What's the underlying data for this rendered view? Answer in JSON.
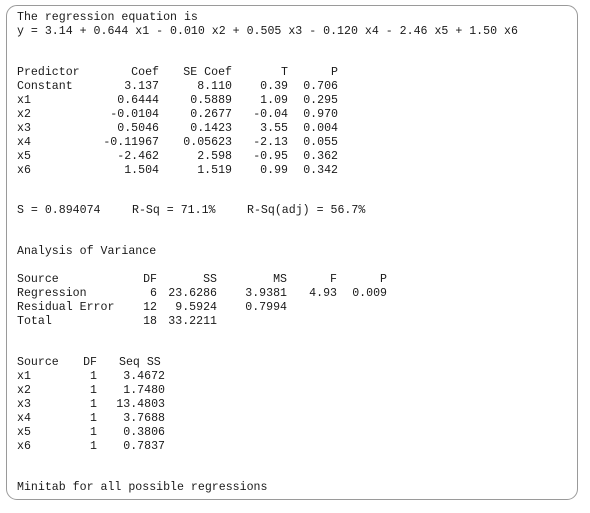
{
  "equation": {
    "heading": "The regression equation is",
    "formula": "y = 3.14 + 0.644 x1 - 0.010 x2 + 0.505 x3 - 0.120 x4 - 2.46 x5 + 1.50 x6"
  },
  "coefficients": {
    "headers": [
      "Predictor",
      "Coef",
      "SE Coef",
      "T",
      "P"
    ],
    "rows": [
      [
        "Constant",
        "3.137",
        "8.110",
        "0.39",
        "0.706"
      ],
      [
        "x1",
        "0.6444",
        "0.5889",
        "1.09",
        "0.295"
      ],
      [
        "x2",
        "-0.0104",
        "0.2677",
        "-0.04",
        "0.970"
      ],
      [
        "x3",
        "0.5046",
        "0.1423",
        "3.55",
        "0.004"
      ],
      [
        "x4",
        "-0.11967",
        "0.05623",
        "-2.13",
        "0.055"
      ],
      [
        "x5",
        "-2.462",
        "2.598",
        "-0.95",
        "0.362"
      ],
      [
        "x6",
        "1.504",
        "1.519",
        "0.99",
        "0.342"
      ]
    ]
  },
  "summary": {
    "s": "S = 0.894074",
    "rsq": "R-Sq = 71.1%",
    "rsq_adj": "R-Sq(adj) = 56.7%"
  },
  "anova": {
    "title": "Analysis of Variance",
    "headers": [
      "Source",
      "DF",
      "SS",
      "MS",
      "F",
      "P"
    ],
    "rows": [
      [
        "Regression",
        "6",
        "23.6286",
        "3.9381",
        "4.93",
        "0.009"
      ],
      [
        "Residual Error",
        "12",
        "9.5924",
        "0.7994",
        "",
        ""
      ],
      [
        "Total",
        "18",
        "33.2211",
        "",
        "",
        ""
      ]
    ]
  },
  "seq_ss": {
    "headers": [
      "Source",
      "DF",
      "Seq SS"
    ],
    "rows": [
      [
        "x1",
        "1",
        "3.4672"
      ],
      [
        "x2",
        "1",
        "1.7480"
      ],
      [
        "x3",
        "1",
        "13.4803"
      ],
      [
        "x4",
        "1",
        "3.7688"
      ],
      [
        "x5",
        "1",
        "0.3806"
      ],
      [
        "x6",
        "1",
        "0.7837"
      ]
    ]
  },
  "footer": "Minitab for all possible regressions"
}
